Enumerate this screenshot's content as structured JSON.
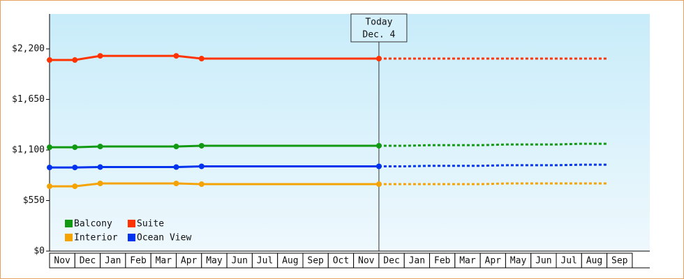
{
  "chart_data": {
    "type": "line",
    "categories": [
      "Nov",
      "Dec",
      "Jan",
      "Feb",
      "Mar",
      "Apr",
      "May",
      "Jun",
      "Jul",
      "Aug",
      "Sep",
      "Oct",
      "Nov",
      "Dec",
      "Jan",
      "Feb",
      "Mar",
      "Apr",
      "May",
      "Jun",
      "Jul",
      "Aug",
      "Sep"
    ],
    "today_index": 13,
    "today_label": [
      "Today",
      "Dec. 4"
    ],
    "ylim": [
      0,
      2580
    ],
    "yticks": [
      {
        "value": 0,
        "label": "$0"
      },
      {
        "value": 550,
        "label": "$550"
      },
      {
        "value": 1100,
        "label": "$1,100"
      },
      {
        "value": 1650,
        "label": "$1,650"
      },
      {
        "value": 2200,
        "label": "$2,200"
      }
    ],
    "series": [
      {
        "name": "Balcony",
        "color": "#119911",
        "values": [
          1130,
          1130,
          1138,
          1138,
          1138,
          1138,
          1146,
          1146,
          1146,
          1146,
          1146,
          1146,
          1146,
          1146,
          1146,
          1152,
          1152,
          1152,
          1160,
          1160,
          1160,
          1168,
          1168
        ]
      },
      {
        "name": "Suite",
        "color": "#ff3300",
        "values": [
          2079,
          2079,
          2124,
          2124,
          2124,
          2124,
          2094,
          2094,
          2094,
          2094,
          2094,
          2094,
          2094,
          2094,
          2094,
          2094,
          2094,
          2094,
          2094,
          2094,
          2094,
          2094,
          2094
        ]
      },
      {
        "name": "Interior",
        "color": "#f5a300",
        "values": [
          705,
          705,
          736,
          736,
          736,
          736,
          728,
          728,
          728,
          728,
          728,
          728,
          728,
          728,
          728,
          728,
          728,
          728,
          736,
          736,
          736,
          736,
          736
        ]
      },
      {
        "name": "Ocean View",
        "color": "#0033ee",
        "values": [
          910,
          910,
          914,
          914,
          914,
          914,
          922,
          922,
          922,
          922,
          922,
          922,
          922,
          922,
          922,
          928,
          928,
          928,
          934,
          934,
          934,
          940,
          940
        ]
      }
    ]
  }
}
